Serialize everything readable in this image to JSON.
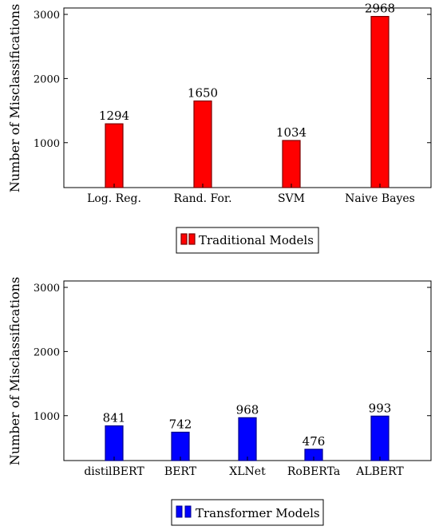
{
  "chart_data": [
    {
      "type": "bar",
      "categories": [
        "Log. Reg.",
        "Rand. For.",
        "SVM",
        "Naive Bayes"
      ],
      "values": [
        1294,
        1650,
        1034,
        2968
      ],
      "ylabel": "Number of Misclassifications",
      "legend": "Traditional Models",
      "legend_position": "bottom-center",
      "yticks": [
        1000,
        2000,
        3000
      ],
      "ylim": [
        300,
        3100
      ],
      "bar_color": "#ff0000",
      "bar_edge_color": "#7a0000"
    },
    {
      "type": "bar",
      "categories": [
        "distilBERT",
        "BERT",
        "XLNet",
        "RoBERTa",
        "ALBERT"
      ],
      "values": [
        841,
        742,
        968,
        476,
        993
      ],
      "ylabel": "Number of Misclassifications",
      "legend": "Transformer Models",
      "legend_position": "bottom-center",
      "yticks": [
        1000,
        2000,
        3000
      ],
      "ylim": [
        300,
        3100
      ],
      "bar_color": "#0000ff",
      "bar_edge_color": "#00008b"
    }
  ]
}
